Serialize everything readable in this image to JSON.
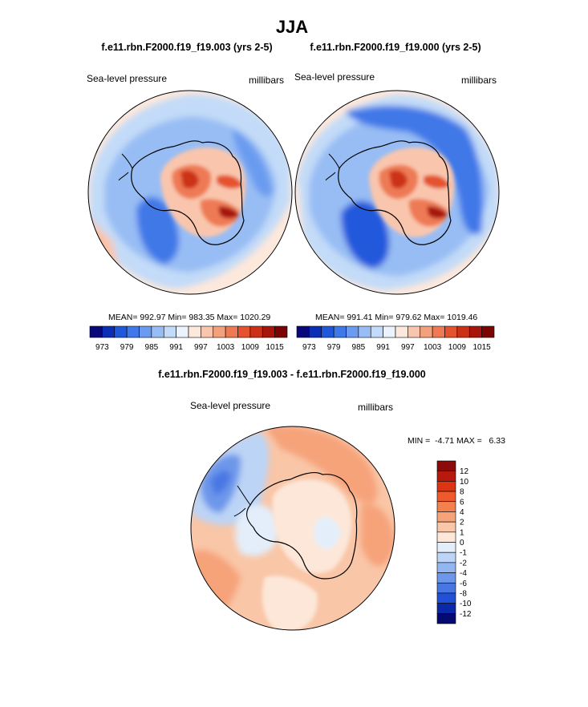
{
  "chart_data": {
    "title": "JJA",
    "variable": "Sea-level pressure",
    "units": "millibars",
    "panels": [
      {
        "type": "heatmap",
        "projection": "south-polar-stereographic",
        "title": "f.e11.rbn.F2000.f19_f19.003 (yrs 2-5)",
        "left_label": "Sea-level pressure",
        "right_label": "millibars",
        "stats_text": "MEAN= 992.97  Min= 983.35  Max= 1020.29",
        "colorbar_ticks": [
          "973",
          "979",
          "985",
          "991",
          "997",
          "1003",
          "1009",
          "1015"
        ],
        "colors": [
          "#08087a",
          "#0a2fb5",
          "#2058dc",
          "#3f78e8",
          "#6a9bf0",
          "#98bdf4",
          "#c3dbf8",
          "#ecf3fc",
          "#fde8dc",
          "#f9c6ad",
          "#f3a07d",
          "#ee7a55",
          "#e4522f",
          "#cc3117",
          "#a8160b",
          "#7a0404"
        ]
      },
      {
        "type": "heatmap",
        "projection": "south-polar-stereographic",
        "title": "f.e11.rbn.F2000.f19_f19.000 (yrs 2-5)",
        "left_label": "Sea-level pressure",
        "right_label": "millibars",
        "stats_text": "MEAN= 991.41  Min= 979.62  Max= 1019.46",
        "colorbar_ticks": [
          "973",
          "979",
          "985",
          "991",
          "997",
          "1003",
          "1009",
          "1015"
        ],
        "colors": [
          "#08087a",
          "#0a2fb5",
          "#2058dc",
          "#3f78e8",
          "#6a9bf0",
          "#98bdf4",
          "#c3dbf8",
          "#ecf3fc",
          "#fde8dc",
          "#f9c6ad",
          "#f3a07d",
          "#ee7a55",
          "#e4522f",
          "#cc3117",
          "#a8160b",
          "#7a0404"
        ]
      },
      {
        "type": "heatmap",
        "projection": "south-polar-stereographic",
        "title": "f.e11.rbn.F2000.f19_f19.003 - f.e11.rbn.F2000.f19_f19.000",
        "left_label": "Sea-level pressure",
        "right_label": "millibars",
        "stats_text": "MIN =  -4.71 MAX =   6.33",
        "colorbar_ticks": [
          "12",
          "10",
          "8",
          "6",
          "4",
          "2",
          "1",
          "0",
          "-1",
          "-2",
          "-4",
          "-6",
          "-8",
          "-10",
          "-12"
        ],
        "colors": [
          "#8b0a0a",
          "#b8190d",
          "#dd3414",
          "#ef5a2c",
          "#f3814e",
          "#f6a37a",
          "#f9c6a7",
          "#fde7d9",
          "#e3eefa",
          "#bcd4f6",
          "#93b6f0",
          "#6d97ea",
          "#4877e4",
          "#2250d6",
          "#0b28a8",
          "#050a72"
        ]
      }
    ]
  }
}
